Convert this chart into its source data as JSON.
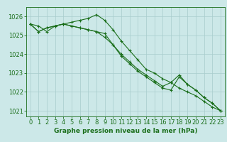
{
  "line1": [
    1025.6,
    1025.5,
    1025.2,
    1025.5,
    1025.6,
    1025.7,
    1025.8,
    1025.9,
    1026.1,
    1025.8,
    1025.3,
    1024.7,
    1024.2,
    1023.7,
    1023.2,
    1023.0,
    1022.7,
    1022.5,
    1022.2,
    1022.0,
    1021.8,
    1021.5,
    1021.2,
    1021.0
  ],
  "line2": [
    1025.6,
    1025.2,
    1025.4,
    1025.5,
    1025.6,
    1025.5,
    1025.4,
    1025.3,
    1025.2,
    1025.1,
    1024.5,
    1023.9,
    1023.5,
    1023.1,
    1022.8,
    1022.5,
    1022.2,
    1022.1,
    1022.8,
    1022.4,
    1022.1,
    1021.7,
    1021.4,
    1021.0
  ],
  "line3": [
    1025.6,
    1025.2,
    1025.4,
    1025.5,
    1025.6,
    1025.5,
    1025.4,
    1025.3,
    1025.2,
    1024.9,
    1024.5,
    1024.0,
    1023.6,
    1023.2,
    1022.9,
    1022.6,
    1022.3,
    1022.5,
    1022.9,
    1022.4,
    1022.1,
    1021.7,
    1021.4,
    1021.0
  ],
  "line_color": "#1a6e1a",
  "bg_color": "#cce8e8",
  "grid_color": "#a8cccc",
  "xlabel": "Graphe pression niveau de la mer (hPa)",
  "ylim": [
    1020.7,
    1026.5
  ],
  "yticks": [
    1021,
    1022,
    1023,
    1024,
    1025,
    1026
  ],
  "xticks": [
    0,
    1,
    2,
    3,
    4,
    5,
    6,
    7,
    8,
    9,
    10,
    11,
    12,
    13,
    14,
    15,
    16,
    17,
    18,
    19,
    20,
    21,
    22,
    23
  ],
  "xlabel_fontsize": 6.5,
  "tick_fontsize": 6.0,
  "line_width": 0.8,
  "marker_size": 2.5
}
